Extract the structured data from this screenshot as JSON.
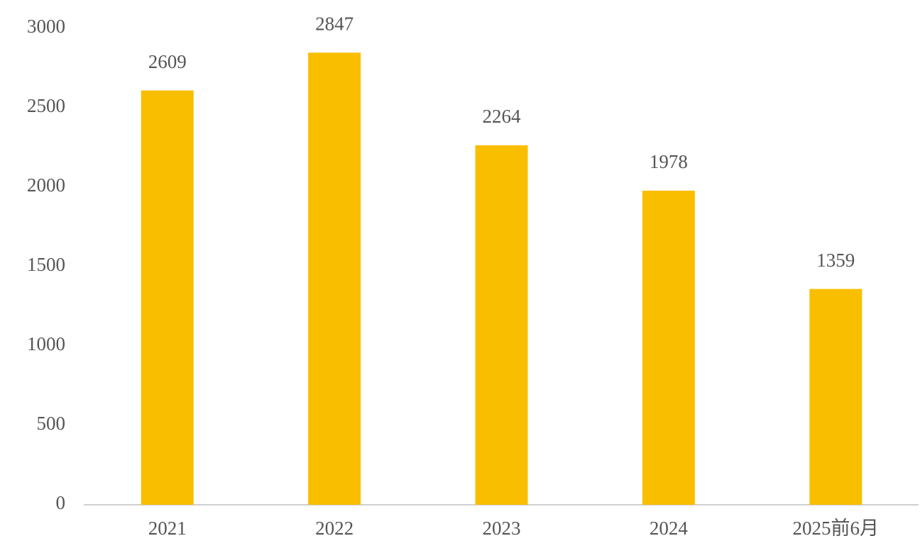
{
  "chart_data": {
    "type": "bar",
    "categories": [
      "2021",
      "2022",
      "2023",
      "2024",
      "2025前6月"
    ],
    "values": [
      2609,
      2847,
      2264,
      1978,
      1359
    ],
    "color": "#f9be00",
    "ylim": [
      0,
      3000
    ],
    "yticks": [
      0,
      500,
      1000,
      1500,
      2000,
      2500,
      3000
    ],
    "grid": false
  }
}
